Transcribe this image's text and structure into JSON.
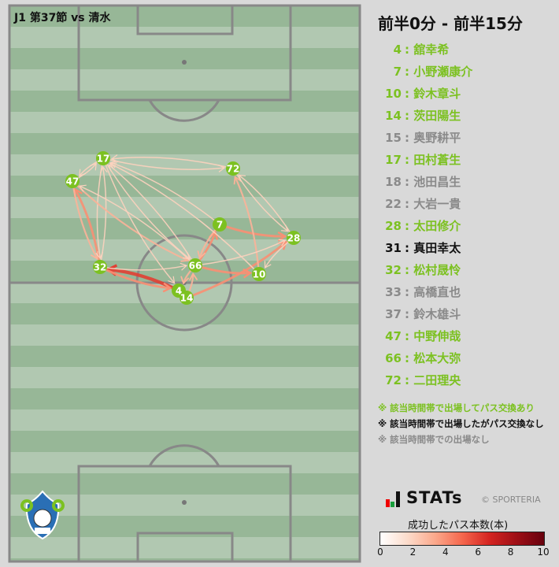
{
  "match_title": "J1 第37節 vs 清水",
  "period": "前半0分 - 前半15分",
  "colors": {
    "active": "#7cc121",
    "no_pass": "#111111",
    "absent": "#8a8a8a",
    "pitch_dark": "#97b797",
    "pitch_light": "#b1c8b1"
  },
  "players": [
    {
      "no": "4",
      "name": "舘幸希",
      "status": "active"
    },
    {
      "no": "7",
      "name": "小野瀬康介",
      "status": "active"
    },
    {
      "no": "10",
      "name": "鈴木章斗",
      "status": "active"
    },
    {
      "no": "14",
      "name": "茨田陽生",
      "status": "active"
    },
    {
      "no": "15",
      "name": "奥野耕平",
      "status": "absent"
    },
    {
      "no": "17",
      "name": "田村蒼生",
      "status": "active"
    },
    {
      "no": "18",
      "name": "池田昌生",
      "status": "absent"
    },
    {
      "no": "22",
      "name": "大岩一貴",
      "status": "absent"
    },
    {
      "no": "28",
      "name": "太田修介",
      "status": "active"
    },
    {
      "no": "31",
      "name": "真田幸太",
      "status": "no_pass"
    },
    {
      "no": "32",
      "name": "松村晟怜",
      "status": "active"
    },
    {
      "no": "33",
      "name": "高橋直也",
      "status": "absent"
    },
    {
      "no": "37",
      "name": "鈴木雄斗",
      "status": "absent"
    },
    {
      "no": "47",
      "name": "中野伸哉",
      "status": "active"
    },
    {
      "no": "66",
      "name": "松本大弥",
      "status": "active"
    },
    {
      "no": "72",
      "name": "二田理央",
      "status": "active"
    }
  ],
  "notes": [
    "※ 該当時間帯で出場してパス交換あり",
    "※ 該当時間帯で出場したがパス交換なし",
    "※ 該当時間帯での出場なし"
  ],
  "brand": "STATs",
  "copyright": "© SPORTERIA",
  "colorbar": {
    "title": "成功したパス本数(本)",
    "ticks": [
      "0",
      "2",
      "4",
      "6",
      "8",
      "10"
    ],
    "min": 0,
    "max": 10
  },
  "passes": [
    [
      "4",
      "32",
      5
    ],
    [
      "32",
      "4",
      3
    ],
    [
      "32",
      "47",
      3
    ],
    [
      "47",
      "32",
      2
    ],
    [
      "14",
      "28",
      3
    ],
    [
      "7",
      "28",
      3
    ],
    [
      "66",
      "10",
      3
    ],
    [
      "66",
      "7",
      3
    ],
    [
      "7",
      "66",
      2
    ],
    [
      "14",
      "66",
      2
    ],
    [
      "66",
      "4",
      2
    ],
    [
      "10",
      "72",
      2
    ],
    [
      "28",
      "72",
      1
    ],
    [
      "72",
      "28",
      1
    ],
    [
      "17",
      "72",
      1
    ],
    [
      "72",
      "17",
      1
    ],
    [
      "17",
      "47",
      1
    ],
    [
      "47",
      "17",
      1
    ],
    [
      "17",
      "32",
      1
    ],
    [
      "32",
      "17",
      1
    ],
    [
      "47",
      "66",
      2
    ],
    [
      "17",
      "66",
      1
    ],
    [
      "66",
      "17",
      1
    ],
    [
      "17",
      "4",
      1
    ],
    [
      "7",
      "17",
      1
    ],
    [
      "10",
      "17",
      1
    ],
    [
      "66",
      "28",
      1
    ],
    [
      "28",
      "10",
      1
    ],
    [
      "32",
      "66",
      1
    ],
    [
      "66",
      "47",
      1
    ]
  ]
}
